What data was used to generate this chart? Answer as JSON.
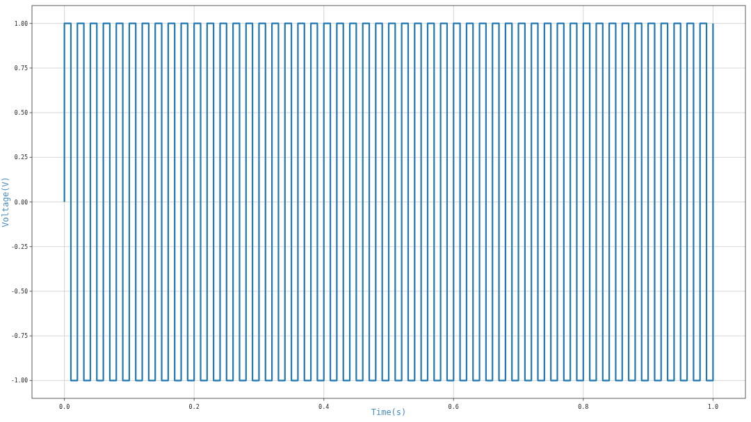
{
  "chart_data": {
    "type": "line",
    "xlabel": "Time(s)",
    "ylabel": "Voltage(V)",
    "xlim": [
      -0.05,
      1.05
    ],
    "ylim": [
      -1.1,
      1.1
    ],
    "xticks": [
      {
        "value": 0,
        "label": "0.0"
      },
      {
        "value": 0.2,
        "label": "0.2"
      },
      {
        "value": 0.4,
        "label": "0.4"
      },
      {
        "value": 0.6,
        "label": "0.6"
      },
      {
        "value": 0.8,
        "label": "0.8"
      },
      {
        "value": 1,
        "label": "1.0"
      }
    ],
    "yticks": [
      {
        "value": -1,
        "label": "-1.00"
      },
      {
        "value": -0.75,
        "label": "-0.75"
      },
      {
        "value": -0.5,
        "label": "-0.50"
      },
      {
        "value": -0.25,
        "label": "-0.25"
      },
      {
        "value": 0,
        "label": "0.00"
      },
      {
        "value": 0.25,
        "label": "0.25"
      },
      {
        "value": 0.5,
        "label": "0.50"
      },
      {
        "value": 0.75,
        "label": "0.75"
      },
      {
        "value": 1,
        "label": "1.00"
      }
    ],
    "grid": true,
    "series": [
      {
        "color": "#1f77b4",
        "x": [
          0,
          0,
          0.01,
          0.01,
          0.02,
          0.02,
          0.03,
          0.03,
          0.04,
          0.04,
          0.05,
          0.05,
          0.06,
          0.06,
          0.07,
          0.07,
          0.08,
          0.08,
          0.09,
          0.09,
          0.1,
          0.1,
          0.11,
          0.11,
          0.12,
          0.12,
          0.13,
          0.13,
          0.14,
          0.14,
          0.15,
          0.15,
          0.16,
          0.16,
          0.17,
          0.17,
          0.18,
          0.18,
          0.19,
          0.19,
          0.2,
          0.2,
          0.21,
          0.21,
          0.22,
          0.22,
          0.23,
          0.23,
          0.24,
          0.24,
          0.25,
          0.25,
          0.26,
          0.26,
          0.27,
          0.27,
          0.28,
          0.28,
          0.29,
          0.29,
          0.3,
          0.3,
          0.31,
          0.31,
          0.32,
          0.32,
          0.33,
          0.33,
          0.34,
          0.34,
          0.35,
          0.35,
          0.36,
          0.36,
          0.37,
          0.37,
          0.38,
          0.38,
          0.39,
          0.39,
          0.4,
          0.4,
          0.41,
          0.41,
          0.42,
          0.42,
          0.43,
          0.43,
          0.44,
          0.44,
          0.45,
          0.45,
          0.46,
          0.46,
          0.47,
          0.47,
          0.48,
          0.48,
          0.49,
          0.49,
          0.5,
          0.5,
          0.51,
          0.51,
          0.52,
          0.52,
          0.53,
          0.53,
          0.54,
          0.54,
          0.55,
          0.55,
          0.56,
          0.56,
          0.57,
          0.57,
          0.58,
          0.58,
          0.59,
          0.59,
          0.6,
          0.6,
          0.61,
          0.61,
          0.62,
          0.62,
          0.63,
          0.63,
          0.64,
          0.64,
          0.65,
          0.65,
          0.66,
          0.66,
          0.67,
          0.67,
          0.68,
          0.68,
          0.69,
          0.69,
          0.7,
          0.7,
          0.71,
          0.71,
          0.72,
          0.72,
          0.73,
          0.73,
          0.74,
          0.74,
          0.75,
          0.75,
          0.76,
          0.76,
          0.77,
          0.77,
          0.78,
          0.78,
          0.79,
          0.79,
          0.8,
          0.8,
          0.81,
          0.81,
          0.82,
          0.82,
          0.83,
          0.83,
          0.84,
          0.84,
          0.85,
          0.85,
          0.86,
          0.86,
          0.87,
          0.87,
          0.88,
          0.88,
          0.89,
          0.89,
          0.9,
          0.9,
          0.91,
          0.91,
          0.92,
          0.92,
          0.93,
          0.93,
          0.94,
          0.94,
          0.95,
          0.95,
          0.96,
          0.96,
          0.97,
          0.97,
          0.98,
          0.98,
          0.99,
          0.99,
          1,
          1
        ],
        "values": [
          0,
          1,
          1,
          -1,
          -1,
          1,
          1,
          -1,
          -1,
          1,
          1,
          -1,
          -1,
          1,
          1,
          -1,
          -1,
          1,
          1,
          -1,
          -1,
          1,
          1,
          -1,
          -1,
          1,
          1,
          -1,
          -1,
          1,
          1,
          -1,
          -1,
          1,
          1,
          -1,
          -1,
          1,
          1,
          -1,
          -1,
          1,
          1,
          -1,
          -1,
          1,
          1,
          -1,
          -1,
          1,
          1,
          -1,
          -1,
          1,
          1,
          -1,
          -1,
          1,
          1,
          -1,
          -1,
          1,
          1,
          -1,
          -1,
          1,
          1,
          -1,
          -1,
          1,
          1,
          -1,
          -1,
          1,
          1,
          -1,
          -1,
          1,
          1,
          -1,
          -1,
          1,
          1,
          -1,
          -1,
          1,
          1,
          -1,
          -1,
          1,
          1,
          -1,
          -1,
          1,
          1,
          -1,
          -1,
          1,
          1,
          -1,
          -1,
          1,
          1,
          -1,
          -1,
          1,
          1,
          -1,
          -1,
          1,
          1,
          -1,
          -1,
          1,
          1,
          -1,
          -1,
          1,
          1,
          -1,
          -1,
          1,
          1,
          -1,
          -1,
          1,
          1,
          -1,
          -1,
          1,
          1,
          -1,
          -1,
          1,
          1,
          -1,
          -1,
          1,
          1,
          -1,
          -1,
          1,
          1,
          -1,
          -1,
          1,
          1,
          -1,
          -1,
          1,
          1,
          -1,
          -1,
          1,
          1,
          -1,
          -1,
          1,
          1,
          -1,
          -1,
          1,
          1,
          -1,
          -1,
          1,
          1,
          -1,
          -1,
          1,
          1,
          -1,
          -1,
          1,
          1,
          -1,
          -1,
          1,
          1,
          -1,
          -1,
          1,
          1,
          -1,
          -1,
          1,
          1,
          -1,
          -1,
          1,
          1,
          -1,
          -1,
          1,
          1,
          -1,
          -1,
          1,
          1,
          -1,
          -1,
          1
        ]
      }
    ]
  }
}
